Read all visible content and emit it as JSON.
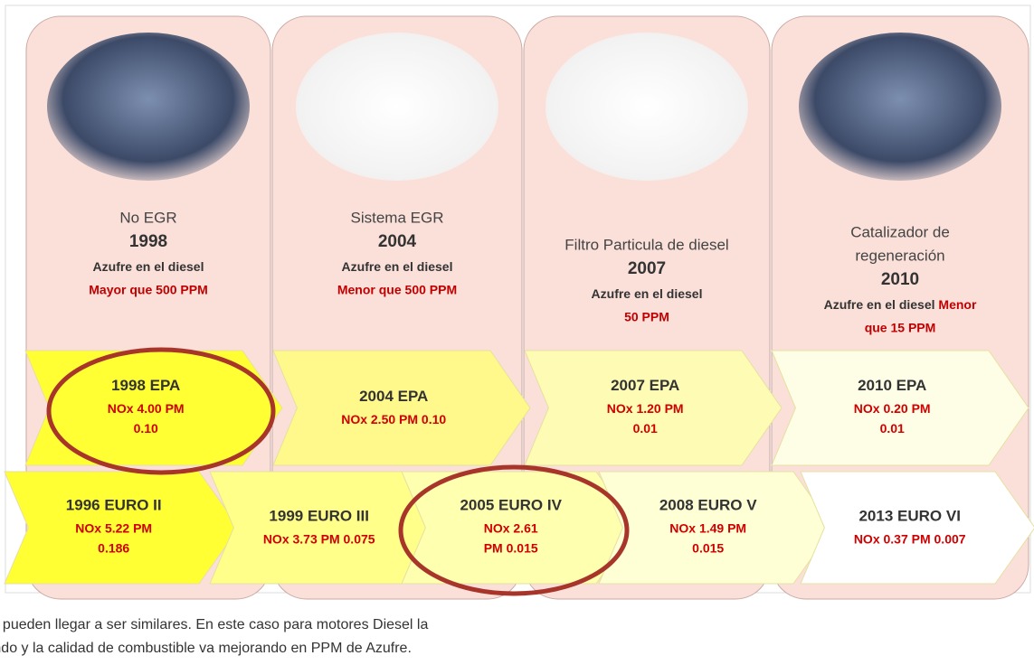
{
  "columns": [
    {
      "tech": [
        "No EGR"
      ],
      "year": "1998",
      "sulfur_label": "Azufre en el diesel",
      "sulfur_limit": [
        "Mayor que 500 PPM"
      ]
    },
    {
      "tech": [
        "Sistema EGR"
      ],
      "year": "2004",
      "sulfur_label": "Azufre en el diesel",
      "sulfur_limit": [
        "Menor que 500 PPM"
      ]
    },
    {
      "tech": [
        "Filtro Particula de diesel"
      ],
      "year": "2007",
      "sulfur_label": "Azufre en el diesel",
      "sulfur_limit": [
        "50 PPM"
      ]
    },
    {
      "tech": [
        "Catalizador de",
        "regeneración"
      ],
      "year": "2010",
      "sulfur_label": "Azufre en el diesel",
      "sulfur_limit": [
        "Menor",
        "que 15 PPM"
      ]
    }
  ],
  "epa": [
    {
      "title": "1998 EPA",
      "lines": [
        "NOx 4.00  PM",
        "0.10"
      ]
    },
    {
      "title": "2004 EPA",
      "lines": [
        "NOx 2.50 PM  0.10"
      ]
    },
    {
      "title": "2007 EPA",
      "lines": [
        "NOx 1.20  PM",
        "0.01"
      ]
    },
    {
      "title": "2010 EPA",
      "lines": [
        "NOx 0.20  PM",
        "0.01"
      ]
    }
  ],
  "euro": [
    {
      "title": "1996 EURO II",
      "lines": [
        "NOx 5.22  PM",
        "0.186"
      ]
    },
    {
      "title": "1999 EURO III",
      "lines": [
        "NOx 3.73  PM  0.075"
      ]
    },
    {
      "title": "2005 EURO IV",
      "lines": [
        "NOx 2.61",
        "PM  0.015"
      ]
    },
    {
      "title": "2008 EURO V",
      "lines": [
        "NOx 1.49  PM",
        "0.015"
      ]
    },
    {
      "title": "2013 EURO VI",
      "lines": [
        "NOx 0.37  PM  0.007"
      ]
    }
  ],
  "caption": [
    "Las Normas EPA y EURO no son iguales, pueden llegar a ser similares. En este caso para motores Diesel la",
    "tecnología de los motores va aumentando y la calidad de combustible va mejorando en PPM de Azufre."
  ]
}
